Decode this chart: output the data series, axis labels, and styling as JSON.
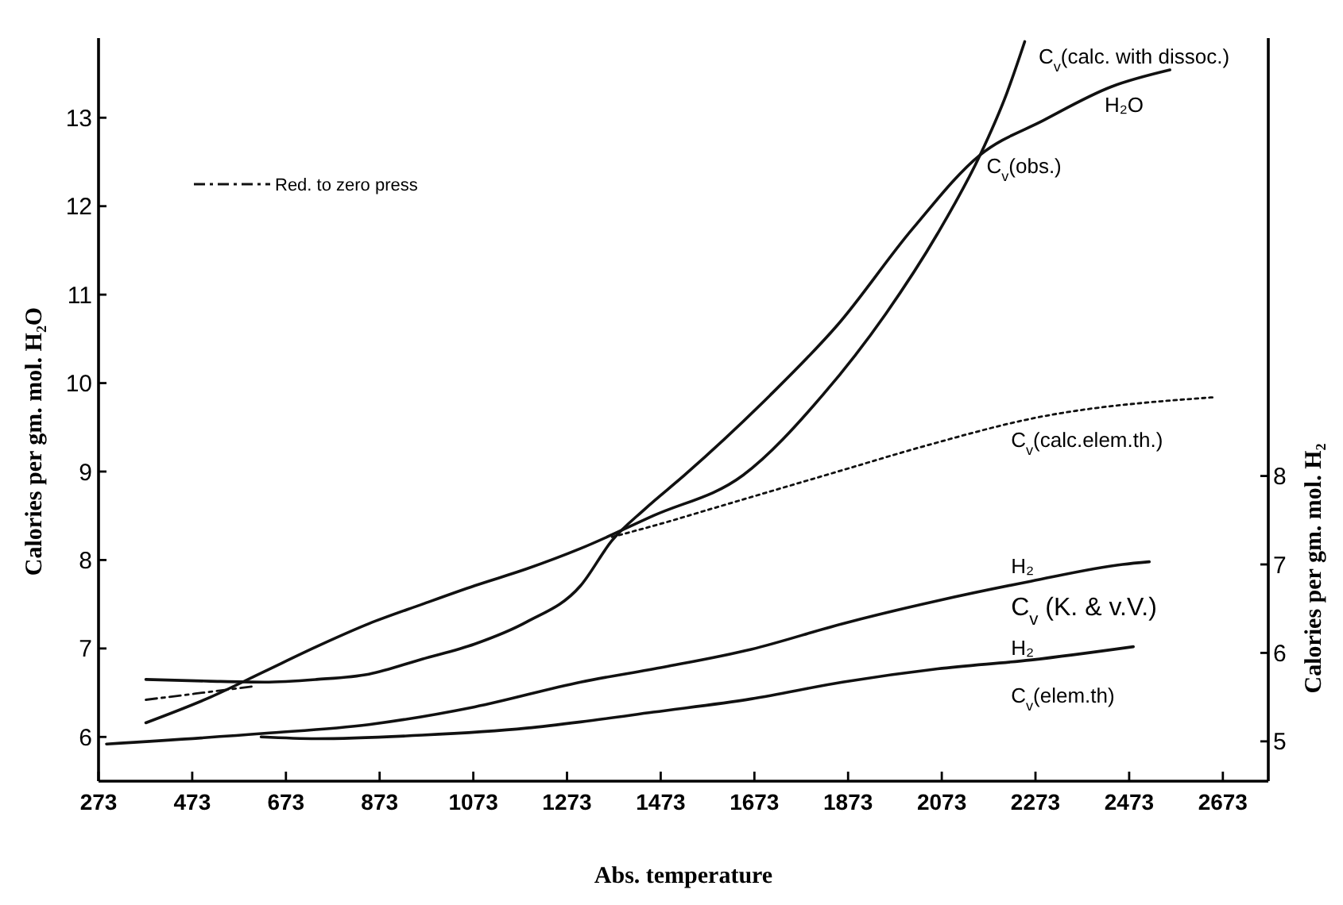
{
  "chart_data": {
    "type": "line",
    "xlabel": "Abs. temperature",
    "ylabel": "Calories per gm. mol. H₂O",
    "y2label": "Calories per gm. mol. H₂",
    "xlim": [
      273,
      2770
    ],
    "xticks": [
      273,
      473,
      673,
      873,
      1073,
      1273,
      1473,
      1673,
      1873,
      2073,
      2273,
      2473,
      2673
    ],
    "ylim": [
      5.5,
      13.9
    ],
    "yticks": [
      6,
      7,
      8,
      9,
      10,
      11,
      12,
      13
    ],
    "y2lim": [
      4.55,
      12.95
    ],
    "y2ticks": [
      5,
      6,
      7,
      8
    ],
    "grid": false,
    "legend": "top left",
    "marker": "none",
    "series": [
      {
        "color": "#111111",
        "line_style": "solid",
        "x": [
          374,
          512,
          627,
          738,
          850,
          964,
          1076,
          1187,
          1302,
          1369,
          1440,
          1524,
          1706,
          1851,
          2010,
          2155,
          2290,
          2435,
          2560
        ],
        "values": [
          6.65,
          6.63,
          6.62,
          6.65,
          6.71,
          6.88,
          7.05,
          7.3,
          7.71,
          8.22,
          8.58,
          8.96,
          9.86,
          10.66,
          11.74,
          12.58,
          12.97,
          13.35,
          13.54
        ]
      },
      {
        "color": "#111111",
        "line_style": "solid",
        "x": [
          374,
          512,
          627,
          738,
          850,
          964,
          1076,
          1187,
          1302,
          1457,
          1649,
          1818,
          1953,
          2064,
          2155,
          2212,
          2250
        ],
        "values": [
          6.16,
          6.45,
          6.74,
          7.02,
          7.28,
          7.5,
          7.71,
          7.9,
          8.13,
          8.5,
          8.96,
          9.86,
          10.78,
          11.69,
          12.58,
          13.28,
          13.86
        ]
      },
      {
        "name": "Red. to zero press",
        "color": "#111111",
        "line_style": "dashed",
        "x": [
          374,
          480,
          600
        ],
        "values": [
          6.42,
          6.49,
          6.57
        ]
      },
      {
        "color": "#111111",
        "line_style": "dotted",
        "x": [
          1369,
          1480,
          1582,
          1851,
          2044,
          2266,
          2654
        ],
        "values": [
          8.26,
          8.42,
          8.58,
          9.0,
          9.3,
          9.6,
          9.84
        ]
      },
      {
        "color": "#111111",
        "line_style": "solid",
        "axis": "y2",
        "x": [
          290,
          627,
          850,
          1076,
          1302,
          1480,
          1666,
          1861,
          2064,
          2263,
          2459,
          2516
        ],
        "values": [
          4.97,
          5.09,
          5.19,
          5.39,
          5.67,
          5.84,
          6.04,
          6.33,
          6.59,
          6.81,
          7.0,
          7.03
        ]
      },
      {
        "color": "#111111",
        "line_style": "solid",
        "axis": "y2",
        "x": [
          620,
          738,
          964,
          1187,
          1302,
          1457,
          1666,
          1861,
          2064,
          2263,
          2482
        ],
        "values": [
          5.05,
          5.03,
          5.07,
          5.15,
          5.22,
          5.33,
          5.48,
          5.67,
          5.82,
          5.92,
          6.07
        ]
      }
    ],
    "annotations": [
      {
        "text": "C$_{v}$(calc. with dissoc.)",
        "x": 2266,
        "y": 13.82
      },
      {
        "text": "C$_{v}$(obs.)",
        "x": 2155,
        "y": 12.58
      },
      "H₂O",
      "C$_{v}$(calc.elem.th.)",
      "H₂",
      "C$_{v}$ (K. & v.V.)",
      "H₂",
      "C$_{v}$(elem.th)"
    ]
  }
}
